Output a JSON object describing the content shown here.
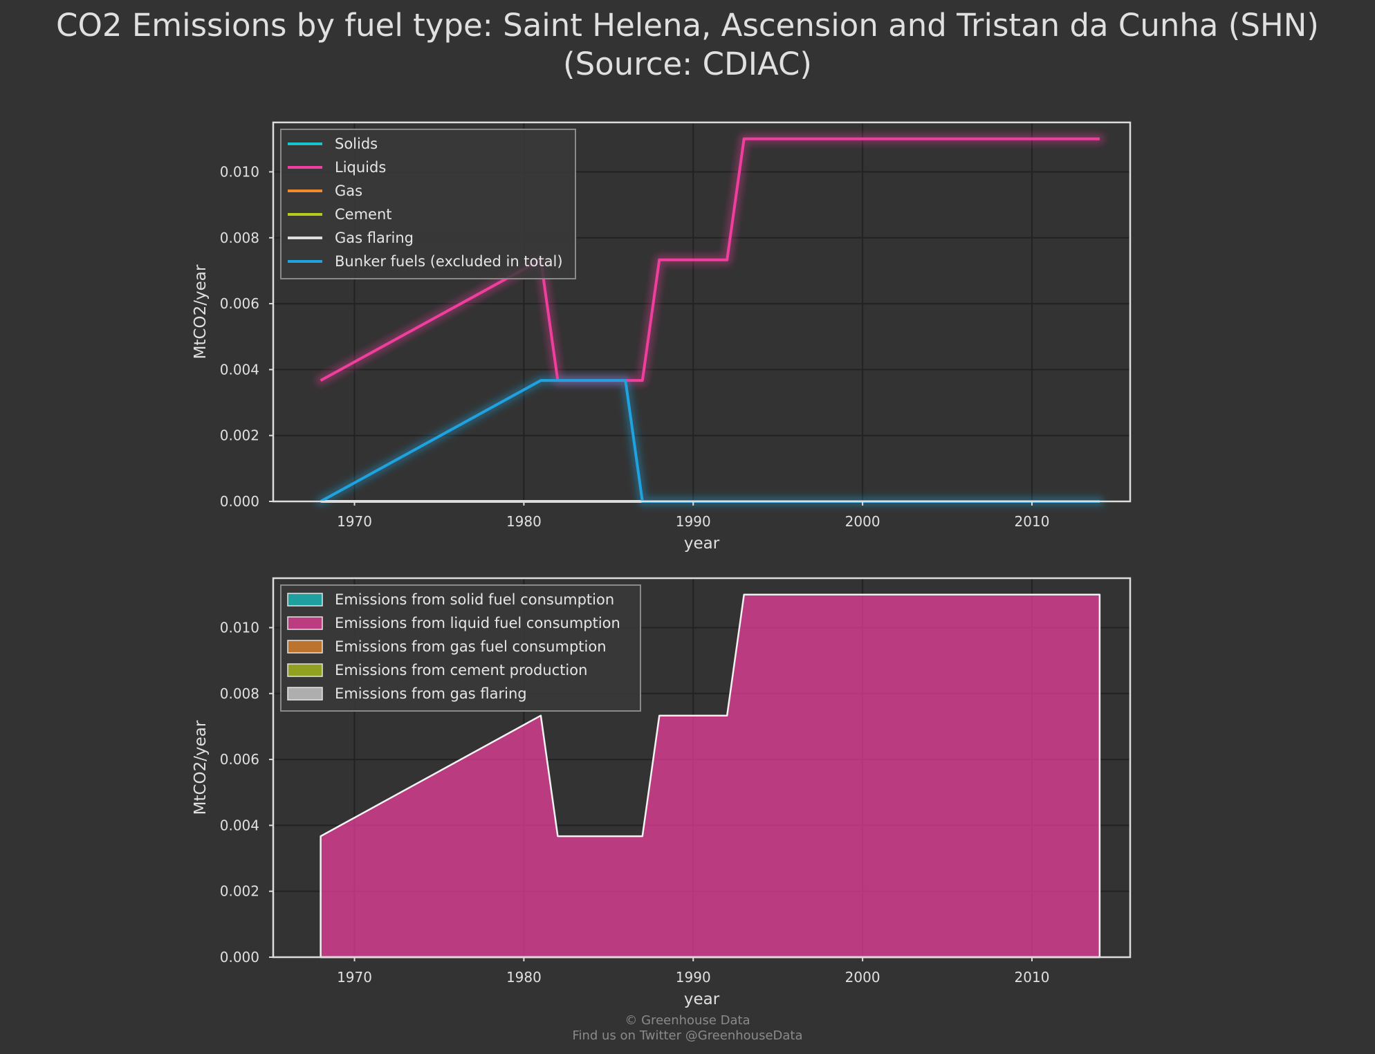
{
  "title_lines": [
    "CO2 Emissions by fuel type: Saint Helena, Ascension and Tristan da Cunha (SHN)",
    "(Source: CDIAC)"
  ],
  "footer_lines": [
    "© Greenhouse Data",
    "Find us on Twitter @GreenhouseData"
  ],
  "colors": {
    "background": "#333333",
    "grid": "#222222",
    "frame": "#dddddd",
    "solids": "#17c7c7",
    "liquids": "#f03e9e",
    "gas": "#f08a2a",
    "cement": "#b5cc18",
    "gas_flaring": "#dddddd",
    "bunker": "#1ea3e0"
  },
  "chart_data": [
    {
      "type": "line",
      "xlabel": "year",
      "ylabel": "MtCO2/year",
      "xlim": [
        1965.2,
        2015.8
      ],
      "ylim": [
        0,
        0.0115
      ],
      "xticks": [
        1970,
        1980,
        1990,
        2000,
        2010
      ],
      "yticks": [
        "0.000",
        "0.002",
        "0.004",
        "0.006",
        "0.008",
        "0.010"
      ],
      "grid": true,
      "legend_position": "upper-left",
      "series": [
        {
          "name": "Solids",
          "color_key": "solids",
          "x": [
            1968,
            2014
          ],
          "y": [
            0,
            0
          ]
        },
        {
          "name": "Liquids",
          "color_key": "liquids",
          "x": [
            1968,
            1981,
            1982,
            1987,
            1988,
            1992,
            1993,
            2014
          ],
          "y": [
            0.00367,
            0.00733,
            0.00367,
            0.00367,
            0.00733,
            0.00733,
            0.011,
            0.011
          ]
        },
        {
          "name": "Gas",
          "color_key": "gas",
          "x": [
            1968,
            2014
          ],
          "y": [
            0,
            0
          ]
        },
        {
          "name": "Cement",
          "color_key": "cement",
          "x": [
            1968,
            2014
          ],
          "y": [
            0,
            0
          ]
        },
        {
          "name": "Gas flaring",
          "color_key": "gas_flaring",
          "x": [
            1968,
            2014
          ],
          "y": [
            0,
            0
          ]
        },
        {
          "name": "Bunker fuels (excluded in total)",
          "color_key": "bunker",
          "x": [
            1968,
            1981,
            1986,
            1987,
            2014
          ],
          "y": [
            0,
            0.00367,
            0.00367,
            0,
            0
          ]
        }
      ]
    },
    {
      "type": "area",
      "xlabel": "year",
      "ylabel": "MtCO2/year",
      "xlim": [
        1965.2,
        2015.8
      ],
      "ylim": [
        0,
        0.0115
      ],
      "xticks": [
        1970,
        1980,
        1990,
        2000,
        2010
      ],
      "yticks": [
        "0.000",
        "0.002",
        "0.004",
        "0.006",
        "0.008",
        "0.010"
      ],
      "grid": true,
      "legend_position": "upper-left",
      "stacked": true,
      "series": [
        {
          "name": "Emissions from solid fuel consumption",
          "color_key": "solids",
          "x": [
            1968,
            2014
          ],
          "y": [
            0,
            0
          ]
        },
        {
          "name": "Emissions from liquid fuel consumption",
          "color_key": "liquids",
          "x": [
            1968,
            1981,
            1982,
            1987,
            1988,
            1992,
            1993,
            2014
          ],
          "y": [
            0.00367,
            0.00733,
            0.00367,
            0.00367,
            0.00733,
            0.00733,
            0.011,
            0.011
          ]
        },
        {
          "name": "Emissions from gas fuel consumption",
          "color_key": "gas",
          "x": [
            1968,
            2014
          ],
          "y": [
            0,
            0
          ]
        },
        {
          "name": "Emissions from cement production",
          "color_key": "cement",
          "x": [
            1968,
            2014
          ],
          "y": [
            0,
            0
          ]
        },
        {
          "name": "Emissions from gas flaring",
          "color_key": "gas_flaring",
          "x": [
            1968,
            2014
          ],
          "y": [
            0,
            0
          ]
        }
      ]
    }
  ]
}
